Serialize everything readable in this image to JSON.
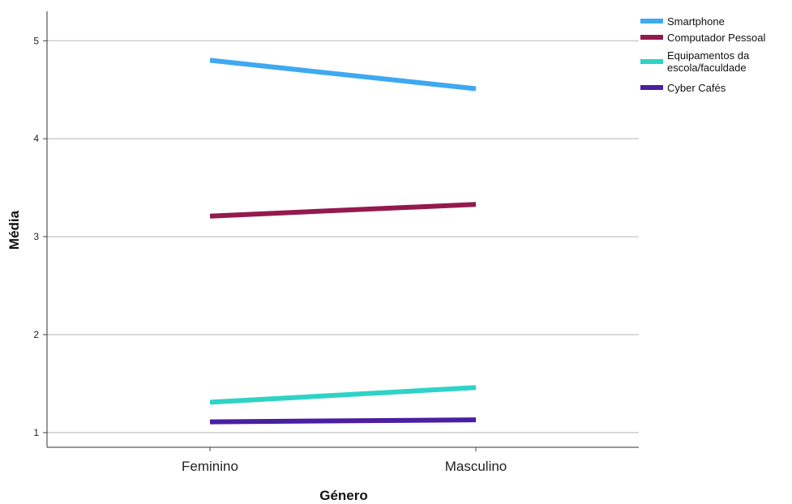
{
  "chart_data": {
    "type": "line",
    "xlabel": "Género",
    "ylabel": "Média",
    "categories": [
      "Feminino",
      "Masculino"
    ],
    "ylim": [
      0.85,
      5.3
    ],
    "yticks": [
      1,
      2,
      3,
      4,
      5
    ],
    "grid": "horizontal",
    "legend_position": "top-right",
    "series": [
      {
        "name": "Smartphone",
        "label_lines": [
          "Smartphone"
        ],
        "color": "#3ea9f0",
        "values": [
          4.8,
          4.51
        ]
      },
      {
        "name": "Computador Pessoal",
        "label_lines": [
          "Computador Pessoal"
        ],
        "color": "#931a4e",
        "values": [
          3.21,
          3.33
        ]
      },
      {
        "name": "Equipamentos da escola/faculdade",
        "label_lines": [
          "Equipamentos da",
          "escola/faculdade"
        ],
        "color": "#2fd3c6",
        "values": [
          1.31,
          1.46
        ]
      },
      {
        "name": "Cyber Cafés",
        "label_lines": [
          "Cyber Cafés"
        ],
        "color": "#4a1fa0",
        "values": [
          1.11,
          1.13
        ]
      }
    ]
  }
}
